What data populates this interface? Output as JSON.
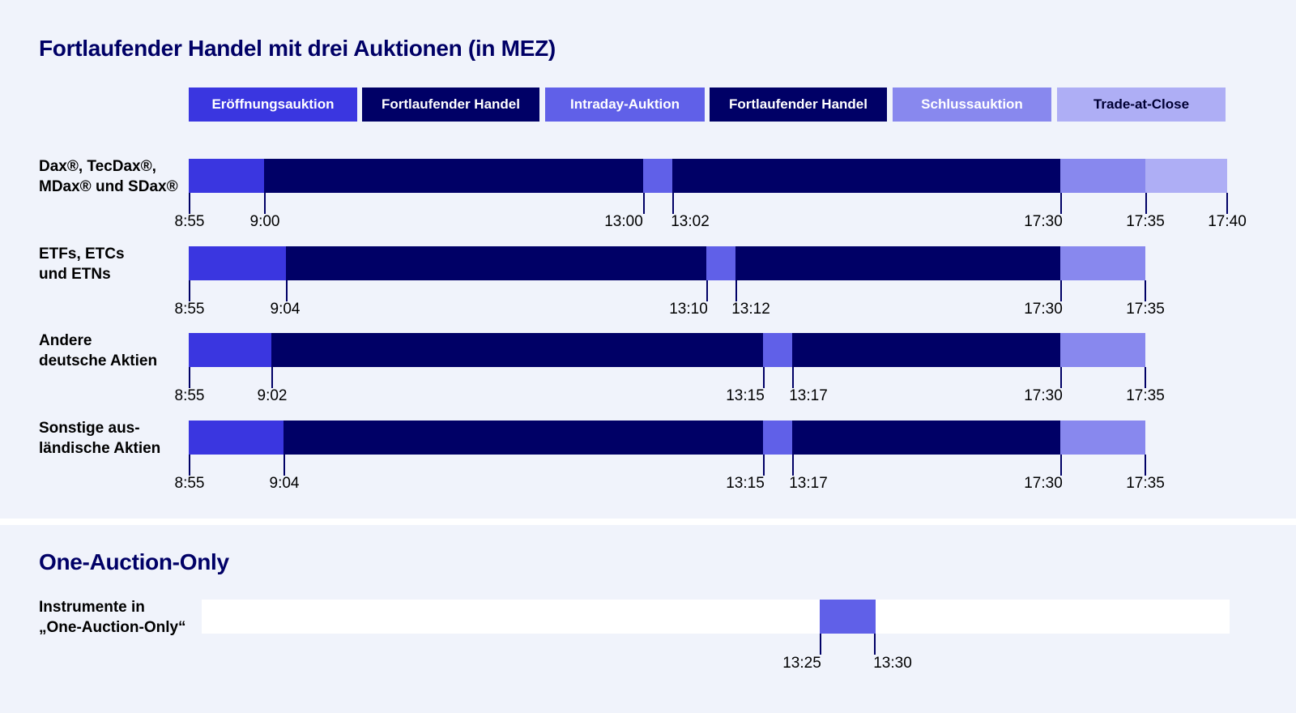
{
  "title": "Fortlaufender Handel mit drei Auktionen (in MEZ)",
  "colors": {
    "opening": "#3a36e0",
    "continuous": "#000066",
    "intraday": "#6060e8",
    "closing": "#8888ee",
    "tac": "#aeaef5",
    "background": "#f0f3fb"
  },
  "legend": [
    {
      "label": "Eröffnungsauktion",
      "phase": "opening"
    },
    {
      "label": "Fortlaufender Handel",
      "phase": "continuous"
    },
    {
      "label": "Intraday-Auktion",
      "phase": "intraday"
    },
    {
      "label": "Fortlaufender Handel",
      "phase": "continuous"
    },
    {
      "label": "Schlussauktion",
      "phase": "closing"
    },
    {
      "label": "Trade-at-Close",
      "phase": "tac"
    }
  ],
  "rows": [
    {
      "label": "Dax®, TecDax®,\nMDax® und SDax®",
      "ticks": [
        "8:55",
        "9:00",
        "13:00",
        "13:02",
        "17:30",
        "17:35",
        "17:40"
      ],
      "phases": [
        "opening",
        "continuous",
        "intraday",
        "continuous",
        "closing",
        "tac"
      ]
    },
    {
      "label": "ETFs, ETCs\nund ETNs",
      "ticks": [
        "8:55",
        "9:04",
        "13:10",
        "13:12",
        "17:30",
        "17:35"
      ],
      "phases": [
        "opening",
        "continuous",
        "intraday",
        "continuous",
        "closing"
      ]
    },
    {
      "label": "Andere\ndeutsche Aktien",
      "ticks": [
        "8:55",
        "9:02",
        "13:15",
        "13:17",
        "17:30",
        "17:35"
      ],
      "phases": [
        "opening",
        "continuous",
        "intraday",
        "continuous",
        "closing"
      ]
    },
    {
      "label": "Sonstige aus-\nländische Aktien",
      "ticks": [
        "8:55",
        "9:04",
        "13:15",
        "13:17",
        "17:30",
        "17:35"
      ],
      "phases": [
        "opening",
        "continuous",
        "intraday",
        "continuous",
        "closing"
      ]
    }
  ],
  "one_auction": {
    "title": "One-Auction-Only",
    "label": "Instrumente in\n„One-Auction-Only“",
    "ticks": [
      "13:25",
      "13:30"
    ],
    "phase": "intraday"
  }
}
